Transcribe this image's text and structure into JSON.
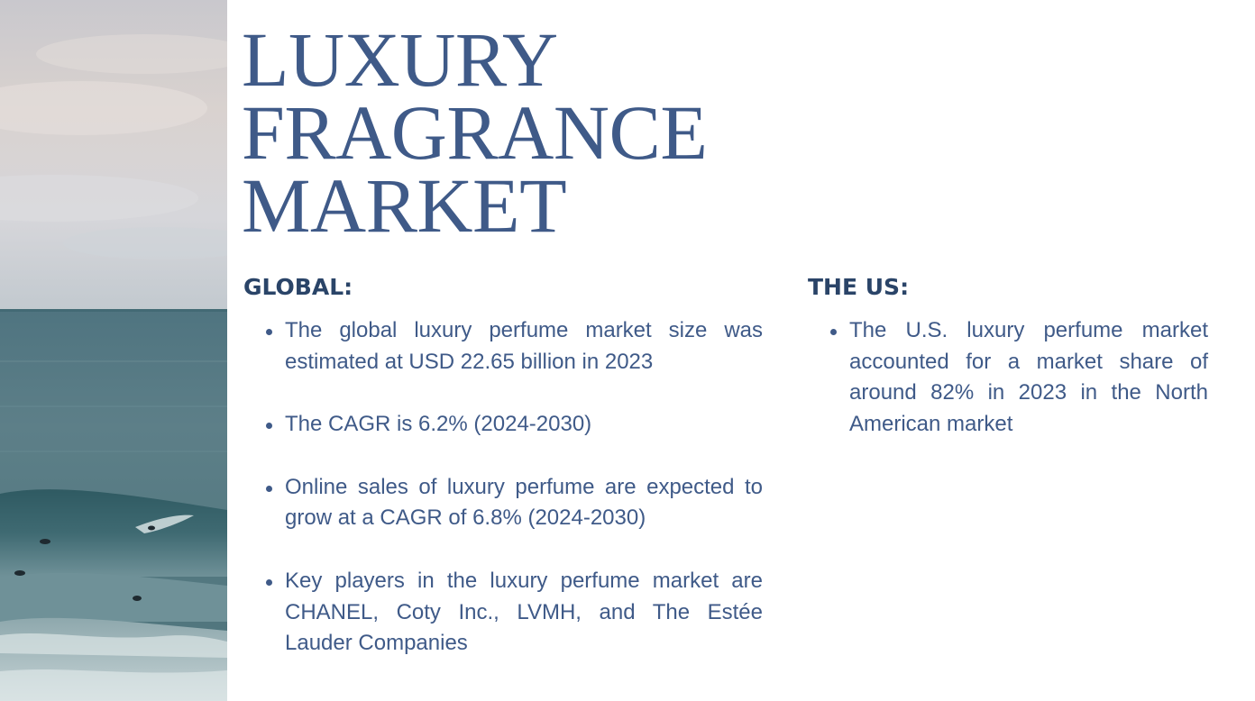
{
  "title": {
    "line1": "LUXURY",
    "line2": "FRAGRANCE",
    "line3": "MARKET"
  },
  "global": {
    "heading": "GLOBAL:",
    "bullets": [
      "The global luxury perfume market size was estimated at USD 22.65 billion in 2023",
      "The CAGR is 6.2% (2024-2030)",
      "Online sales of luxury perfume are expected to grow at a CAGR of 6.8% (2024-2030)",
      "Key players in the luxury perfume market are CHANEL, Coty Inc., LVMH, and The Estée Lauder Companies"
    ]
  },
  "us": {
    "heading": "THE US:",
    "bullets": [
      "The U.S. luxury perfume market accounted for a market share of around 82% in 2023 in the North American market"
    ]
  },
  "colors": {
    "title": "#3f5a88",
    "heading": "#2a4468",
    "body": "#3f5a88",
    "background": "#ffffff"
  },
  "image": {
    "subject": "ocean-with-surfers-photo"
  }
}
